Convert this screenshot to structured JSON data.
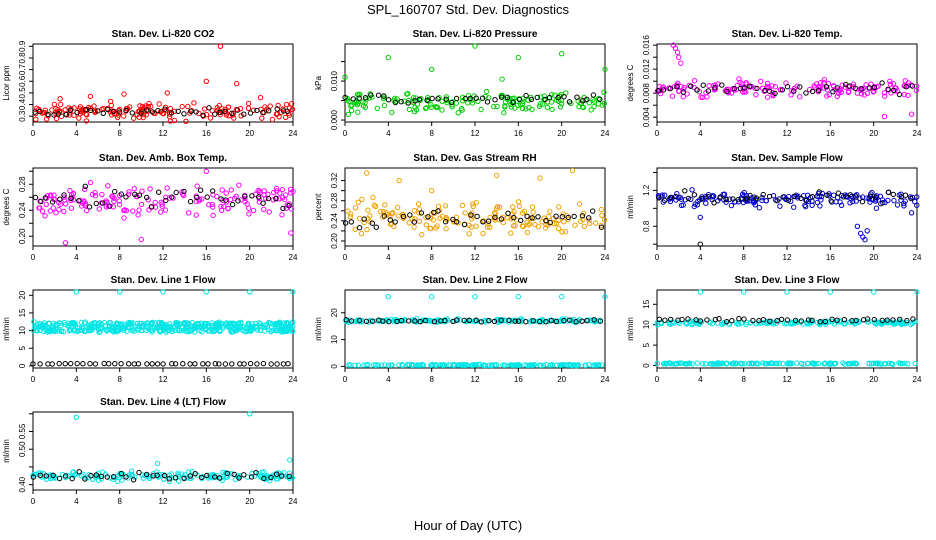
{
  "figure": {
    "title": "SPL_160707  Std. Dev. Diagnostics",
    "xlabel": "Hour of Day (UTC)"
  },
  "chart_data": [
    {
      "type": "scatter",
      "title": "Stan. Dev. Li-820 CO2",
      "ylabel": "Licor ppm",
      "xlim": [
        0,
        24
      ],
      "ylim": [
        0.25,
        0.92
      ],
      "x_ticks": [
        0,
        4,
        8,
        12,
        16,
        20,
        24
      ],
      "y_ticks": [
        0.3,
        0.4,
        0.5,
        0.6,
        0.7,
        0.8,
        0.9
      ],
      "y_tick_labels": [
        "0.3",
        "0.4",
        "0.5",
        "0.6",
        "0.7",
        "0.8",
        "0.9"
      ],
      "grid": false,
      "series": [
        {
          "color": "#ff0000",
          "baseline": 0.34,
          "spread": 0.05,
          "x": [
            2.5,
            5.3,
            8.4,
            12.4,
            16.0,
            17.3,
            18.8,
            21.0
          ],
          "values": [
            0.45,
            0.47,
            0.49,
            0.5,
            0.6,
            0.9,
            0.58,
            0.46
          ]
        },
        {
          "color": "#000000",
          "baseline": 0.34,
          "spread": 0.02
        }
      ]
    },
    {
      "type": "scatter",
      "title": "Stan. Dev. Li-820 Pressure",
      "ylabel": "kPa",
      "xlim": [
        0,
        24
      ],
      "ylim": [
        -0.0005,
        0.0195
      ],
      "x_ticks": [
        0,
        4,
        8,
        12,
        16,
        20,
        24
      ],
      "y_ticks": [
        0.0,
        0.005,
        0.01,
        0.015
      ],
      "y_tick_labels": [
        "0.000",
        "",
        "0.010",
        ""
      ],
      "grid": false,
      "series": [
        {
          "color": "#00cc00",
          "baseline": 0.0045,
          "spread": 0.0018,
          "x": [
            0.0,
            4.0,
            8.0,
            12.0,
            16.0,
            20.0,
            24.0,
            14.5
          ],
          "values": [
            0.011,
            0.016,
            0.013,
            0.019,
            0.016,
            0.017,
            0.013,
            0.0105
          ]
        },
        {
          "color": "#000000",
          "baseline": 0.0055,
          "spread": 0.0008
        }
      ]
    },
    {
      "type": "scatter",
      "title": "Stan. Dev. Li-820 Temp.",
      "ylabel": "degrees C",
      "xlim": [
        0,
        24
      ],
      "ylim": [
        0.0032,
        0.0162
      ],
      "x_ticks": [
        0,
        4,
        8,
        12,
        16,
        20,
        24
      ],
      "y_ticks": [
        0.004,
        0.006,
        0.008,
        0.01,
        0.012,
        0.014,
        0.016
      ],
      "y_tick_labels": [
        "0.004",
        "",
        "0.008",
        "",
        "0.012",
        "",
        "0.016"
      ],
      "grid": false,
      "series": [
        {
          "color": "#ff00ff",
          "baseline": 0.0088,
          "spread": 0.0009,
          "x": [
            1.5,
            1.7,
            1.9,
            2.0,
            2.2,
            21.0,
            23.5
          ],
          "values": [
            0.016,
            0.0155,
            0.0148,
            0.014,
            0.013,
            0.0041,
            0.0045
          ]
        },
        {
          "color": "#000000",
          "baseline": 0.0087,
          "spread": 0.0006
        }
      ]
    },
    {
      "type": "scatter",
      "title": "Stan. Dev. Amb. Box Temp.",
      "ylabel": "degrees C",
      "xlim": [
        0,
        24
      ],
      "ylim": [
        0.185,
        0.305
      ],
      "x_ticks": [
        0,
        4,
        8,
        12,
        16,
        20,
        24
      ],
      "y_ticks": [
        0.2,
        0.22,
        0.24,
        0.26,
        0.28,
        0.3
      ],
      "y_tick_labels": [
        "0.20",
        "",
        "0.24",
        "",
        "0.28",
        ""
      ],
      "grid": false,
      "series": [
        {
          "color": "#ff00ff",
          "baseline": 0.255,
          "spread": 0.016,
          "x": [
            3.0,
            10.0,
            16.0,
            23.8
          ],
          "values": [
            0.19,
            0.195,
            0.3,
            0.205
          ]
        },
        {
          "color": "#000000",
          "baseline": 0.258,
          "spread": 0.012
        }
      ]
    },
    {
      "type": "scatter",
      "title": "Stan. Dev. Gas Stream RH",
      "ylabel": "percent",
      "xlim": [
        0,
        24
      ],
      "ylim": [
        0.19,
        0.345
      ],
      "x_ticks": [
        0,
        4,
        8,
        12,
        16,
        20,
        24
      ],
      "y_ticks": [
        0.2,
        0.22,
        0.24,
        0.26,
        0.28,
        0.3,
        0.32
      ],
      "y_tick_labels": [
        "0.20",
        "",
        "0.24",
        "",
        "0.28",
        "",
        "0.32"
      ],
      "grid": false,
      "series": [
        {
          "color": "#f0a000",
          "baseline": 0.245,
          "spread": 0.022,
          "x": [
            2.0,
            5.0,
            8.0,
            14.0,
            18.0,
            21.0
          ],
          "values": [
            0.335,
            0.32,
            0.3,
            0.33,
            0.325,
            0.34
          ]
        },
        {
          "color": "#000000",
          "baseline": 0.245,
          "spread": 0.014
        }
      ]
    },
    {
      "type": "scatter",
      "title": "Stan. Dev. Sample Flow",
      "ylabel": "ml/min",
      "xlim": [
        0,
        24
      ],
      "ylim": [
        0.58,
        1.45
      ],
      "x_ticks": [
        0,
        4,
        8,
        12,
        16,
        20,
        24
      ],
      "y_ticks": [
        0.6,
        0.8,
        1.0,
        1.2,
        1.4
      ],
      "y_tick_labels": [
        "",
        "0.8",
        "",
        "1.2",
        ""
      ],
      "grid": false,
      "series": [
        {
          "color": "#0000cc",
          "baseline": 1.1,
          "spread": 0.06,
          "x": [
            18.5,
            18.8,
            19.0,
            19.2,
            19.4,
            23.5,
            4.0
          ],
          "values": [
            0.8,
            0.72,
            0.68,
            0.65,
            0.75,
            0.95,
            0.9
          ]
        },
        {
          "color": "#000000",
          "baseline": 1.12,
          "spread": 0.05,
          "x": [
            4.0
          ],
          "values": [
            0.6
          ]
        }
      ]
    },
    {
      "type": "scatter",
      "title": "Stan. Dev. Line 1 Flow",
      "ylabel": "ml/min",
      "xlim": [
        0,
        24
      ],
      "ylim": [
        -0.6,
        21.5
      ],
      "x_ticks": [
        0,
        4,
        8,
        12,
        16,
        20,
        24
      ],
      "y_ticks": [
        0,
        5,
        10,
        15,
        20
      ],
      "y_tick_labels": [
        "0",
        "5",
        "10",
        "15",
        "20"
      ],
      "grid": false,
      "series": [
        {
          "color": "#00e5e5",
          "baseline": 10.0,
          "spread": 0.3,
          "x": [
            4,
            8,
            12,
            16,
            20,
            24
          ],
          "values": [
            21,
            21,
            21,
            21,
            21,
            21
          ]
        },
        {
          "color": "#00e5e5",
          "baseline": 12.0,
          "spread": 0.3
        },
        {
          "color": "#00e5e5",
          "baseline": 11.0,
          "spread": 0.3
        },
        {
          "color": "#000000",
          "baseline": 0.6,
          "spread": 0.05
        }
      ]
    },
    {
      "type": "scatter",
      "title": "Stan. Dev. Line 2 Flow",
      "ylabel": "ml/min",
      "xlim": [
        0,
        24
      ],
      "ylim": [
        -0.6,
        28.5
      ],
      "x_ticks": [
        0,
        4,
        8,
        12,
        16,
        20,
        24
      ],
      "y_ticks": [
        0,
        10,
        20
      ],
      "y_tick_labels": [
        "0",
        "10",
        "20"
      ],
      "grid": false,
      "series": [
        {
          "color": "#00e5e5",
          "baseline": 0.5,
          "spread": 0.15,
          "x": [
            4,
            8,
            12,
            16,
            20,
            24
          ],
          "values": [
            26,
            26,
            26,
            26,
            26,
            26
          ]
        },
        {
          "color": "#00e5e5",
          "baseline": 17.0,
          "spread": 0.4
        },
        {
          "color": "#000000",
          "baseline": 17.0,
          "spread": 0.3
        }
      ]
    },
    {
      "type": "scatter",
      "title": "Stan. Dev. Line 3 Flow",
      "ylabel": "ml/min",
      "xlim": [
        0,
        24
      ],
      "ylim": [
        -0.6,
        18.5
      ],
      "x_ticks": [
        0,
        4,
        8,
        12,
        16,
        20,
        24
      ],
      "y_ticks": [
        0,
        5,
        10,
        15
      ],
      "y_tick_labels": [
        "0",
        "5",
        "10",
        "15"
      ],
      "grid": false,
      "series": [
        {
          "color": "#00e5e5",
          "baseline": 0.5,
          "spread": 0.1,
          "x": [
            4,
            8,
            12,
            16,
            20,
            24
          ],
          "values": [
            18,
            18,
            18,
            18,
            18,
            18
          ]
        },
        {
          "color": "#00e5e5",
          "baseline": 10.5,
          "spread": 0.3
        },
        {
          "color": "#000000",
          "baseline": 11.2,
          "spread": 0.3
        }
      ]
    },
    {
      "type": "scatter",
      "title": "Stan. Dev. Line 4 (LT) Flow",
      "ylabel": "ml/min",
      "xlim": [
        0,
        24
      ],
      "ylim": [
        0.385,
        0.605
      ],
      "x_ticks": [
        0,
        4,
        8,
        12,
        16,
        20,
        24
      ],
      "y_ticks": [
        0.4,
        0.45,
        0.5,
        0.55,
        0.6
      ],
      "y_tick_labels": [
        "0.40",
        "",
        "0.50",
        "0.55",
        ""
      ],
      "grid": false,
      "series": [
        {
          "color": "#00e5e5",
          "baseline": 0.425,
          "spread": 0.009,
          "x": [
            4.0,
            11.5,
            20.0,
            23.7
          ],
          "values": [
            0.59,
            0.46,
            0.6,
            0.47
          ]
        },
        {
          "color": "#000000",
          "baseline": 0.425,
          "spread": 0.008
        }
      ]
    }
  ]
}
